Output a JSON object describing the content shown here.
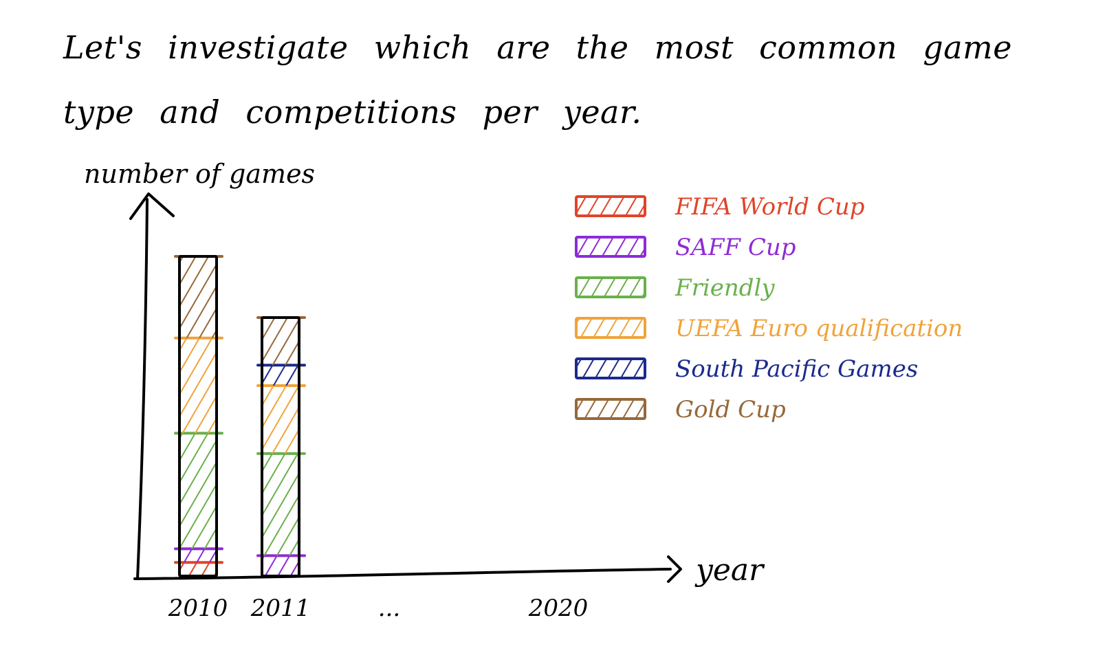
{
  "intro_text": "Let's investigate which are the most common game type and competitions per year.",
  "chart_data": {
    "type": "bar",
    "stacked": true,
    "ylabel": "number of games",
    "xlabel": "year",
    "x_tick_labels": [
      "2010",
      "2011",
      "...",
      "2020"
    ],
    "categories": [
      "2010",
      "2011"
    ],
    "legend_position": "right",
    "grid": false,
    "series": [
      {
        "name": "FIFA World Cup",
        "color": "#e0442a",
        "values": [
          2,
          0
        ]
      },
      {
        "name": "SAFF Cup",
        "color": "#8e2bd6",
        "values": [
          2,
          3
        ]
      },
      {
        "name": "Friendly",
        "color": "#6ab04c",
        "values": [
          17,
          15
        ]
      },
      {
        "name": "UEFA Euro qualification",
        "color": "#f0a33a",
        "values": [
          14,
          10
        ]
      },
      {
        "name": "South Pacific Games",
        "color": "#1b2a8c",
        "values": [
          0,
          3
        ]
      },
      {
        "name": "Gold Cup",
        "color": "#96683a",
        "values": [
          12,
          7
        ]
      }
    ]
  }
}
